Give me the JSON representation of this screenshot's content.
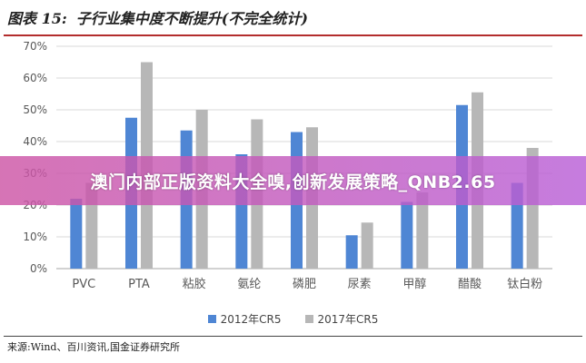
{
  "header": {
    "prefix": "图表 15:",
    "title": "子行业集中度不断提升(不完全统计)"
  },
  "banner": {
    "text": "澳门内部正版资料大全嗅,创新发展策略_QNB2.65"
  },
  "source": {
    "text": "来源:Wind、百川资讯,国金证券研究所"
  },
  "colors": {
    "series_2012": "#4f86d4",
    "series_2017": "#b7b7b7",
    "grid": "#d9d9d9",
    "axis": "#a6a6a6",
    "tick_text": "#595959"
  },
  "chart_data": {
    "type": "bar",
    "title": "子行业集中度不断提升(不完全统计)",
    "xlabel": "",
    "ylabel": "",
    "ylim": [
      0,
      70
    ],
    "yticks": [
      0,
      10,
      20,
      30,
      40,
      50,
      60,
      70
    ],
    "ytick_labels": [
      "0%",
      "10%",
      "20%",
      "30%",
      "40%",
      "50%",
      "60%",
      "70%"
    ],
    "unit": "%",
    "categories": [
      "PVC",
      "PTA",
      "粘胶",
      "氨纶",
      "磷肥",
      "尿素",
      "甲醇",
      "醋酸",
      "钛白粉"
    ],
    "series": [
      {
        "name": "2012年CR5",
        "values": [
          22,
          47.5,
          43.5,
          36,
          43,
          10.5,
          21,
          51.5,
          27
        ]
      },
      {
        "name": "2017年CR5",
        "values": [
          27,
          65,
          50,
          47,
          44.5,
          14.5,
          24,
          55.5,
          38
        ]
      }
    ],
    "legend_position": "bottom",
    "grid": true
  }
}
